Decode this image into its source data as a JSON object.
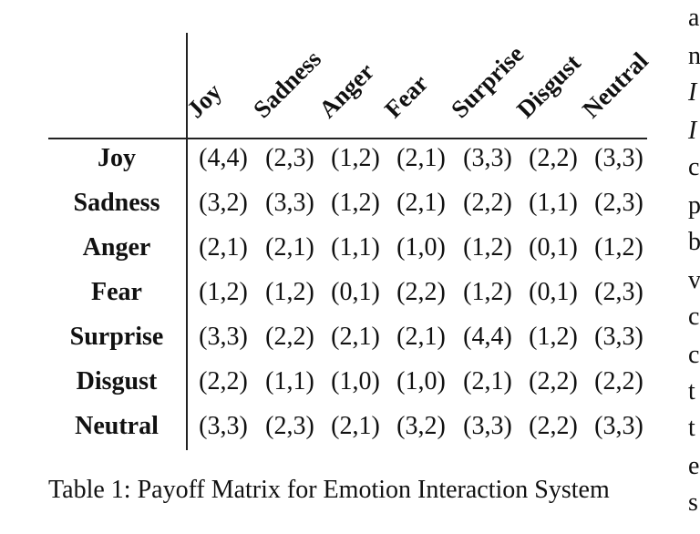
{
  "table": {
    "col_headers": [
      "Joy",
      "Sadness",
      "Anger",
      "Fear",
      "Surprise",
      "Disgust",
      "Neutral"
    ],
    "rows": [
      {
        "label": "Joy",
        "cells": [
          "(4,4)",
          "(2,3)",
          "(1,2)",
          "(2,1)",
          "(3,3)",
          "(2,2)",
          "(3,3)"
        ]
      },
      {
        "label": "Sadness",
        "cells": [
          "(3,2)",
          "(3,3)",
          "(1,2)",
          "(2,1)",
          "(2,2)",
          "(1,1)",
          "(2,3)"
        ]
      },
      {
        "label": "Anger",
        "cells": [
          "(2,1)",
          "(2,1)",
          "(1,1)",
          "(1,0)",
          "(1,2)",
          "(0,1)",
          "(1,2)"
        ]
      },
      {
        "label": "Fear",
        "cells": [
          "(1,2)",
          "(1,2)",
          "(0,1)",
          "(2,2)",
          "(1,2)",
          "(0,1)",
          "(2,3)"
        ]
      },
      {
        "label": "Surprise",
        "cells": [
          "(3,3)",
          "(2,2)",
          "(2,1)",
          "(2,1)",
          "(4,4)",
          "(1,2)",
          "(3,3)"
        ]
      },
      {
        "label": "Disgust",
        "cells": [
          "(2,2)",
          "(1,1)",
          "(1,0)",
          "(1,0)",
          "(2,1)",
          "(2,2)",
          "(2,2)"
        ]
      },
      {
        "label": "Neutral",
        "cells": [
          "(3,3)",
          "(2,3)",
          "(2,1)",
          "(3,2)",
          "(3,3)",
          "(2,2)",
          "(3,3)"
        ]
      }
    ]
  },
  "caption": "Table 1: Payoff Matrix for Emotion Interaction System",
  "side_text": [
    "a",
    "n",
    "I",
    "I",
    "c",
    "p",
    "b",
    "v",
    "c",
    "c",
    "t",
    "t",
    "e",
    "s"
  ]
}
